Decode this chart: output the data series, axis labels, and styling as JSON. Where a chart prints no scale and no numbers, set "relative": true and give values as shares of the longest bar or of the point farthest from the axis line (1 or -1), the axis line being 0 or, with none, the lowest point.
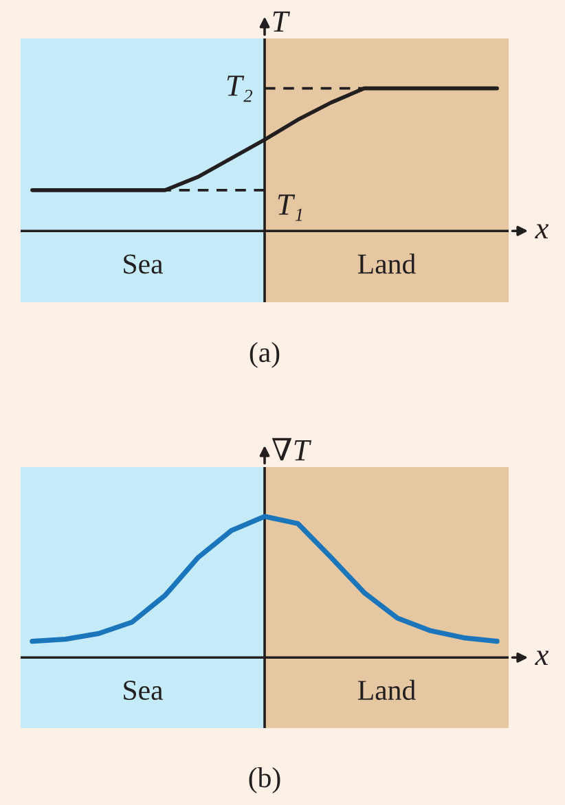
{
  "chart_data": [
    {
      "type": "line",
      "title": "(a)",
      "xlabel": "x",
      "ylabel": "T",
      "relative": true,
      "categories": [
        null,
        null,
        null,
        null,
        null,
        null,
        null,
        null,
        null,
        null,
        null,
        null,
        null,
        null,
        null
      ],
      "series": [
        {
          "color": "#231f20",
          "values": [
            0.286,
            0.286,
            0.286,
            0.286,
            0.286,
            0.38,
            0.51,
            0.64,
            0.78,
            0.9,
            1.0,
            1.0,
            1.0,
            1.0,
            1.0
          ]
        }
      ],
      "ref_lines": [
        {
          "axis": "y",
          "value": 1.0,
          "label": "T₂",
          "line_style": "dashed",
          "color": "#231f20"
        },
        {
          "axis": "y",
          "value": 0.286,
          "label": "T₁",
          "line_style": "dashed",
          "color": "#231f20"
        }
      ],
      "annotations": [
        "Sea",
        "Land"
      ]
    },
    {
      "type": "line",
      "title": "(b)",
      "xlabel": "x",
      "ylabel": "∇T",
      "relative": true,
      "categories": [
        null,
        null,
        null,
        null,
        null,
        null,
        null,
        null,
        null,
        null,
        null,
        null,
        null,
        null,
        null
      ],
      "series": [
        {
          "color": "#1a75bb",
          "values": [
            0.115,
            0.13,
            0.17,
            0.25,
            0.44,
            0.71,
            0.9,
            1.0,
            0.95,
            0.71,
            0.46,
            0.28,
            0.19,
            0.14,
            0.115
          ]
        }
      ],
      "annotations": [
        "Sea",
        "Land"
      ]
    }
  ]
}
